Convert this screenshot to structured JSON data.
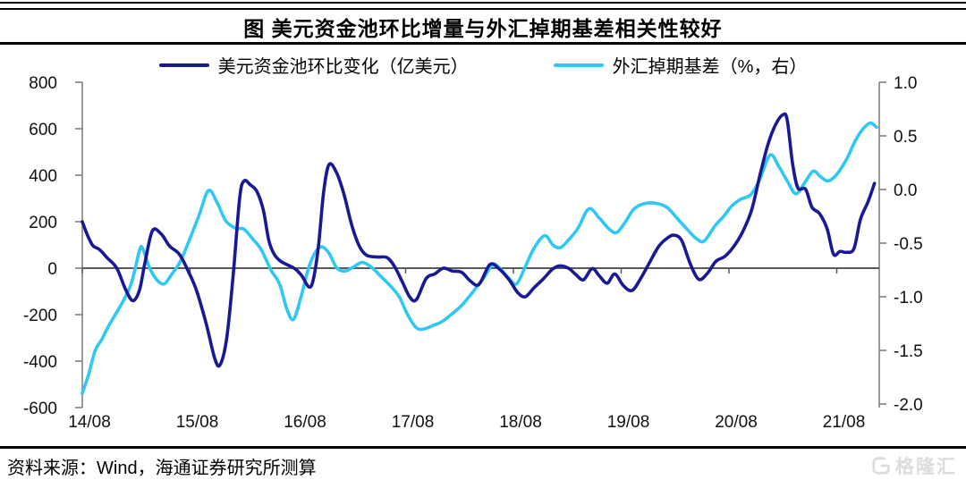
{
  "title": "图 美元资金池环比增量与外汇掉期基差相关性较好",
  "legend": {
    "series1": "美元资金池环比变化（亿美元）",
    "series2": "外汇掉期基差（%，右）"
  },
  "source": "资料来源：Wind，海通证券研究所测算",
  "watermark": {
    "label": "格隆汇"
  },
  "colors": {
    "navy": "#191996",
    "cyan": "#2FC8F5",
    "axis": "#808080",
    "zero_line": "#595959",
    "text": "#111111",
    "watermark": "#dcdcdc"
  },
  "chart_data": {
    "type": "line",
    "title": "图 美元资金池环比增量与外汇掉期基差相关性较好",
    "x_ticks": [
      "14/08",
      "15/08",
      "16/08",
      "17/08",
      "18/08",
      "19/08",
      "20/08",
      "21/08"
    ],
    "x_note": "t in years after 2014/08, monthly samples",
    "left_axis": {
      "min": -600,
      "max": 800,
      "ticks": [
        800,
        600,
        400,
        200,
        0,
        -200,
        -400,
        -600
      ]
    },
    "right_axis": {
      "min": -2.0,
      "max": 1.0,
      "ticks": [
        "1.0",
        "0.5",
        "0.0",
        "-0.5",
        "-1.0",
        "-1.5",
        "-2.0"
      ]
    },
    "grid": false,
    "legend_position": "top",
    "series": [
      {
        "name": "美元资金池环比变化（亿美元）",
        "axis": "left",
        "color": "#191996",
        "points": [
          [
            0,
            200
          ],
          [
            0.05,
            140
          ],
          [
            0.1,
            96
          ],
          [
            0.16,
            80
          ],
          [
            0.23,
            45
          ],
          [
            0.32,
            0
          ],
          [
            0.4,
            -90
          ],
          [
            0.47,
            -140
          ],
          [
            0.53,
            -95
          ],
          [
            0.58,
            20
          ],
          [
            0.65,
            160
          ],
          [
            0.73,
            148
          ],
          [
            0.81,
            95
          ],
          [
            0.9,
            60
          ],
          [
            0.98,
            -10
          ],
          [
            1.06,
            -96
          ],
          [
            1.15,
            -240
          ],
          [
            1.23,
            -390
          ],
          [
            1.28,
            -415
          ],
          [
            1.34,
            -300
          ],
          [
            1.4,
            -30
          ],
          [
            1.46,
            300
          ],
          [
            1.5,
            375
          ],
          [
            1.56,
            358
          ],
          [
            1.62,
            330
          ],
          [
            1.68,
            250
          ],
          [
            1.73,
            120
          ],
          [
            1.78,
            60
          ],
          [
            1.84,
            30
          ],
          [
            1.9,
            15
          ],
          [
            1.98,
            -5
          ],
          [
            2.04,
            -35
          ],
          [
            2.1,
            -80
          ],
          [
            2.14,
            -55
          ],
          [
            2.19,
            90
          ],
          [
            2.24,
            330
          ],
          [
            2.29,
            446
          ],
          [
            2.36,
            410
          ],
          [
            2.43,
            315
          ],
          [
            2.5,
            185
          ],
          [
            2.57,
            95
          ],
          [
            2.64,
            55
          ],
          [
            2.74,
            48
          ],
          [
            2.83,
            45
          ],
          [
            2.9,
            5
          ],
          [
            2.97,
            -60
          ],
          [
            3.04,
            -125
          ],
          [
            3.1,
            -135
          ],
          [
            3.19,
            -45
          ],
          [
            3.27,
            -25
          ],
          [
            3.35,
            0
          ],
          [
            3.43,
            -12
          ],
          [
            3.52,
            -18
          ],
          [
            3.6,
            -55
          ],
          [
            3.68,
            -70
          ],
          [
            3.78,
            15
          ],
          [
            3.86,
            0
          ],
          [
            3.96,
            -50
          ],
          [
            4.04,
            -105
          ],
          [
            4.11,
            -123
          ],
          [
            4.19,
            -85
          ],
          [
            4.28,
            -45
          ],
          [
            4.36,
            -5
          ],
          [
            4.43,
            10
          ],
          [
            4.51,
            0
          ],
          [
            4.58,
            -28
          ],
          [
            4.65,
            -50
          ],
          [
            4.73,
            -2
          ],
          [
            4.8,
            -35
          ],
          [
            4.87,
            -65
          ],
          [
            4.94,
            -25
          ],
          [
            5.02,
            -75
          ],
          [
            5.1,
            -96
          ],
          [
            5.18,
            -45
          ],
          [
            5.27,
            30
          ],
          [
            5.35,
            95
          ],
          [
            5.43,
            130
          ],
          [
            5.49,
            142
          ],
          [
            5.56,
            120
          ],
          [
            5.64,
            20
          ],
          [
            5.72,
            -48
          ],
          [
            5.8,
            -22
          ],
          [
            5.88,
            30
          ],
          [
            5.96,
            50
          ],
          [
            6.04,
            90
          ],
          [
            6.12,
            150
          ],
          [
            6.21,
            250
          ],
          [
            6.29,
            405
          ],
          [
            6.36,
            530
          ],
          [
            6.43,
            615
          ],
          [
            6.5,
            660
          ],
          [
            6.54,
            638
          ],
          [
            6.59,
            450
          ],
          [
            6.64,
            345
          ],
          [
            6.71,
            340
          ],
          [
            6.77,
            262
          ],
          [
            6.84,
            235
          ],
          [
            6.91,
            170
          ],
          [
            6.97,
            60
          ],
          [
            7.03,
            72
          ],
          [
            7.09,
            68
          ],
          [
            7.16,
            85
          ],
          [
            7.22,
            210
          ],
          [
            7.29,
            285
          ],
          [
            7.35,
            365
          ]
        ]
      },
      {
        "name": "外汇掉期基差（%，右）",
        "axis": "right",
        "color": "#2FC8F5",
        "points": [
          [
            0,
            -1.9
          ],
          [
            0.06,
            -1.72
          ],
          [
            0.12,
            -1.5
          ],
          [
            0.18,
            -1.4
          ],
          [
            0.24,
            -1.28
          ],
          [
            0.31,
            -1.16
          ],
          [
            0.39,
            -1.02
          ],
          [
            0.46,
            -0.86
          ],
          [
            0.53,
            -0.57
          ],
          [
            0.56,
            -0.55
          ],
          [
            0.62,
            -0.72
          ],
          [
            0.69,
            -0.84
          ],
          [
            0.76,
            -0.88
          ],
          [
            0.83,
            -0.79
          ],
          [
            0.91,
            -0.67
          ],
          [
            0.99,
            -0.48
          ],
          [
            1.08,
            -0.25
          ],
          [
            1.17,
            -0.01
          ],
          [
            1.25,
            -0.12
          ],
          [
            1.33,
            -0.29
          ],
          [
            1.42,
            -0.36
          ],
          [
            1.5,
            -0.37
          ],
          [
            1.58,
            -0.46
          ],
          [
            1.66,
            -0.56
          ],
          [
            1.75,
            -0.75
          ],
          [
            1.83,
            -0.88
          ],
          [
            1.9,
            -1.12
          ],
          [
            1.96,
            -1.21
          ],
          [
            2.03,
            -1.0
          ],
          [
            2.11,
            -0.7
          ],
          [
            2.2,
            -0.54
          ],
          [
            2.28,
            -0.58
          ],
          [
            2.36,
            -0.73
          ],
          [
            2.44,
            -0.76
          ],
          [
            2.52,
            -0.72
          ],
          [
            2.6,
            -0.68
          ],
          [
            2.69,
            -0.73
          ],
          [
            2.77,
            -0.81
          ],
          [
            2.86,
            -0.9
          ],
          [
            2.94,
            -1.0
          ],
          [
            3.02,
            -1.17
          ],
          [
            3.1,
            -1.29
          ],
          [
            3.17,
            -1.3
          ],
          [
            3.25,
            -1.27
          ],
          [
            3.34,
            -1.23
          ],
          [
            3.43,
            -1.16
          ],
          [
            3.52,
            -1.08
          ],
          [
            3.62,
            -0.96
          ],
          [
            3.72,
            -0.83
          ],
          [
            3.81,
            -0.7
          ],
          [
            3.88,
            -0.74
          ],
          [
            3.96,
            -0.83
          ],
          [
            4.03,
            -0.88
          ],
          [
            4.11,
            -0.72
          ],
          [
            4.19,
            -0.55
          ],
          [
            4.29,
            -0.43
          ],
          [
            4.37,
            -0.52
          ],
          [
            4.44,
            -0.54
          ],
          [
            4.52,
            -0.46
          ],
          [
            4.6,
            -0.36
          ],
          [
            4.7,
            -0.18
          ],
          [
            4.8,
            -0.27
          ],
          [
            4.89,
            -0.37
          ],
          [
            4.96,
            -0.4
          ],
          [
            5.04,
            -0.3
          ],
          [
            5.12,
            -0.18
          ],
          [
            5.22,
            -0.13
          ],
          [
            5.33,
            -0.13
          ],
          [
            5.43,
            -0.17
          ],
          [
            5.52,
            -0.27
          ],
          [
            5.62,
            -0.38
          ],
          [
            5.7,
            -0.46
          ],
          [
            5.77,
            -0.48
          ],
          [
            5.87,
            -0.34
          ],
          [
            5.95,
            -0.25
          ],
          [
            6.03,
            -0.15
          ],
          [
            6.11,
            -0.09
          ],
          [
            6.2,
            -0.05
          ],
          [
            6.28,
            0.08
          ],
          [
            6.38,
            0.32
          ],
          [
            6.46,
            0.22
          ],
          [
            6.54,
            0.08
          ],
          [
            6.62,
            -0.04
          ],
          [
            6.7,
            0.06
          ],
          [
            6.78,
            0.17
          ],
          [
            6.85,
            0.12
          ],
          [
            6.92,
            0.08
          ],
          [
            7.0,
            0.14
          ],
          [
            7.09,
            0.28
          ],
          [
            7.17,
            0.45
          ],
          [
            7.24,
            0.56
          ],
          [
            7.31,
            0.62
          ],
          [
            7.37,
            0.58
          ]
        ]
      }
    ]
  }
}
